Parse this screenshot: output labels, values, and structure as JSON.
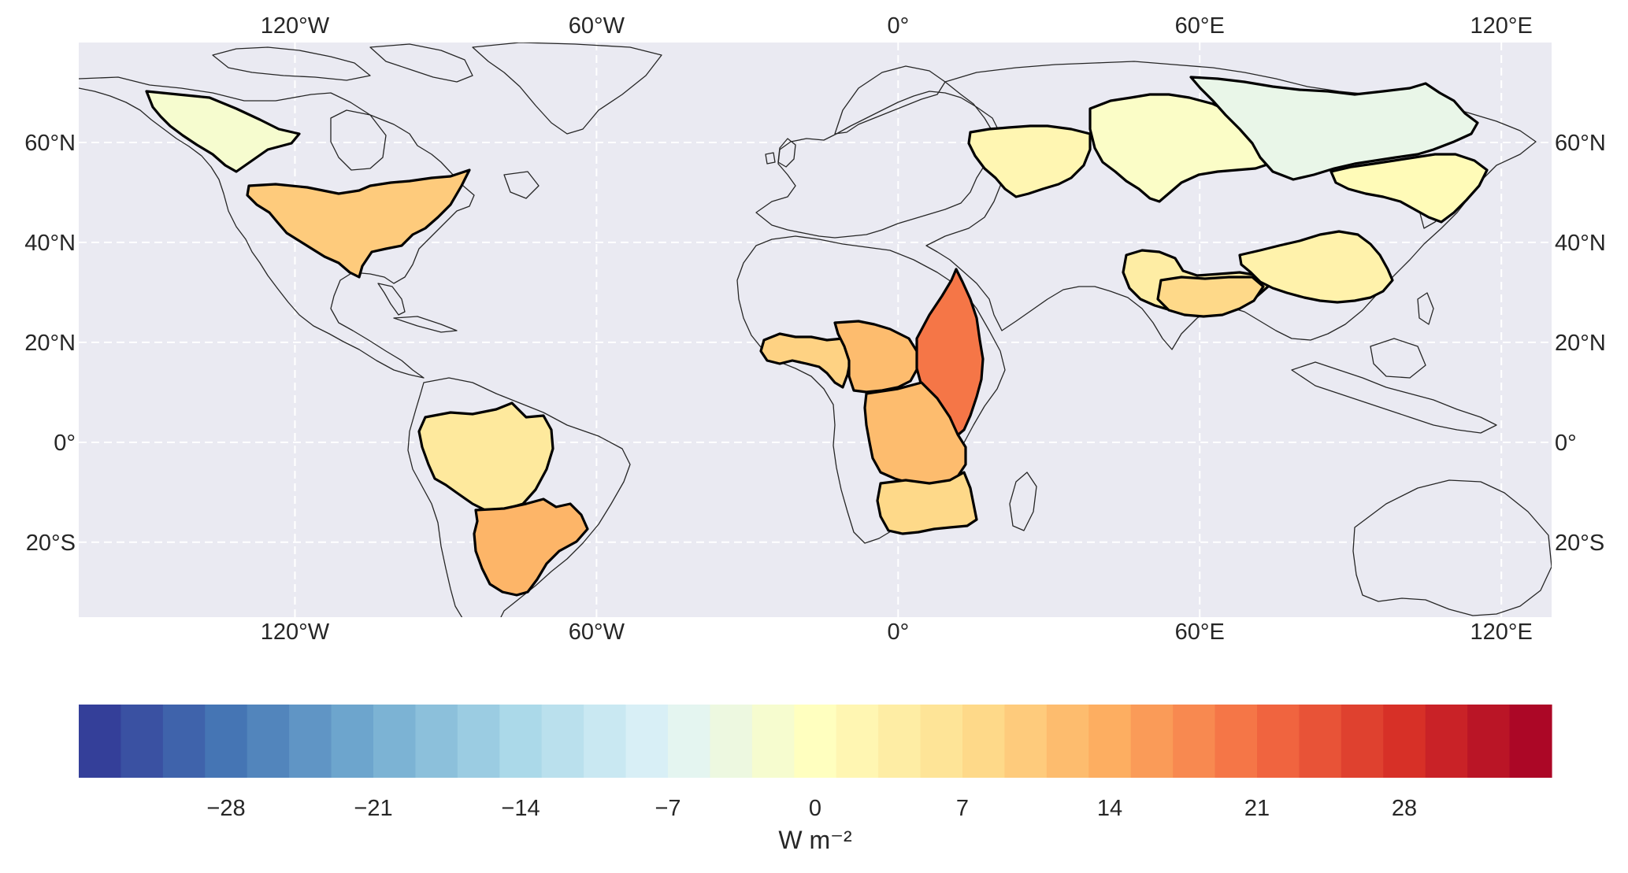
{
  "map": {
    "projection": "equirectangular",
    "lon_range": [
      -163,
      130
    ],
    "lat_range": [
      -35,
      80
    ],
    "background_color": "#eaeaf2",
    "grid": true,
    "grid_color": "#ffffff",
    "coastline_color": "#262626",
    "region_outline_color": "#000000",
    "lon_ticks": [
      {
        "value": -120,
        "label": "120°W"
      },
      {
        "value": -60,
        "label": "60°W"
      },
      {
        "value": 0,
        "label": "0°"
      },
      {
        "value": 60,
        "label": "60°E"
      },
      {
        "value": 120,
        "label": "120°E"
      }
    ],
    "lat_ticks": [
      {
        "value": 60,
        "label": "60°N"
      },
      {
        "value": 40,
        "label": "40°N"
      },
      {
        "value": 20,
        "label": "20°N"
      },
      {
        "value": 0,
        "label": "0°"
      },
      {
        "value": -20,
        "label": "20°S"
      }
    ],
    "regions": [
      {
        "id": "northwest-canada",
        "mean_value": -2
      },
      {
        "id": "mississippi-basin",
        "mean_value": 10
      },
      {
        "id": "amazon-basin",
        "mean_value": 5
      },
      {
        "id": "parana-basin",
        "mean_value": 13
      },
      {
        "id": "west-africa",
        "mean_value": 9
      },
      {
        "id": "lake-chad-basin",
        "mean_value": 12
      },
      {
        "id": "nile-basin",
        "mean_value": 20
      },
      {
        "id": "congo-basin",
        "mean_value": 12
      },
      {
        "id": "zambezi-basin",
        "mean_value": 8
      },
      {
        "id": "volga-basin",
        "mean_value": 2
      },
      {
        "id": "ob-basin",
        "mean_value": -1
      },
      {
        "id": "yenisei-lena-basin",
        "mean_value": -5
      },
      {
        "id": "amur-basin",
        "mean_value": 1
      },
      {
        "id": "aral-basin",
        "mean_value": 4
      },
      {
        "id": "indus-ganges-basin",
        "mean_value": 8
      },
      {
        "id": "yellow-yangtze-basin",
        "mean_value": 3
      }
    ]
  },
  "colorbar": {
    "vmin": -35,
    "vmax": 35,
    "n_levels": 35,
    "colormap": "RdYlBu_r",
    "ticks": [
      -28,
      -21,
      -14,
      -7,
      0,
      7,
      14,
      21,
      28
    ],
    "tick_labels": [
      "−28",
      "−21",
      "−14",
      "−7",
      "0",
      "7",
      "14",
      "21",
      "28"
    ],
    "unit_label": "W m⁻²"
  }
}
